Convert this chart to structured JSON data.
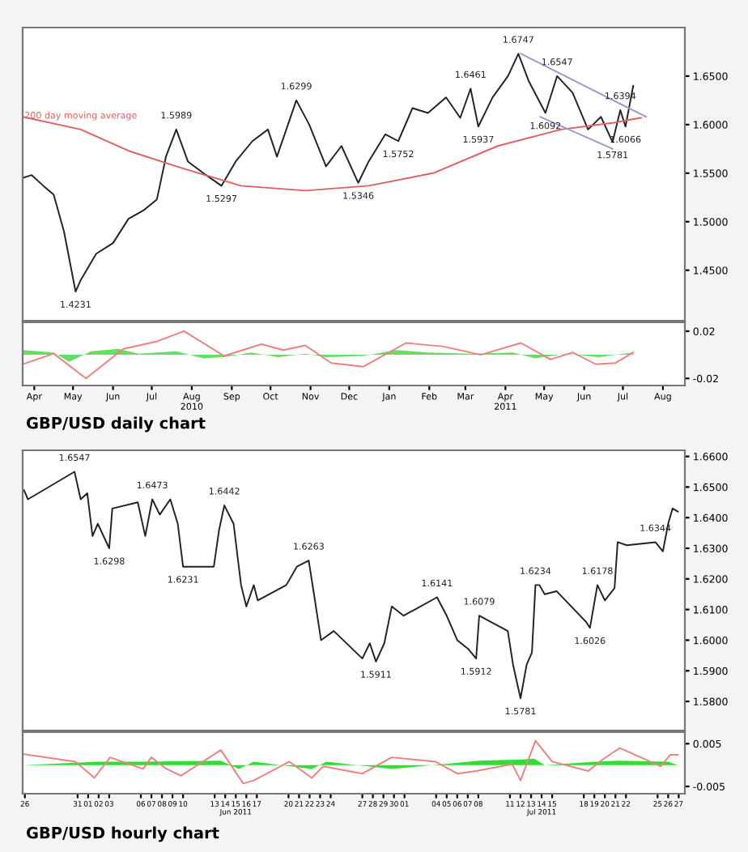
{
  "chart_data": [
    {
      "type": "line",
      "title": "GBP/USD daily chart",
      "tick_labels": "y",
      "xlim": [
        "2010-04-06",
        "2011-09-01"
      ],
      "ylim": [
        1.398,
        1.7
      ],
      "yticks": [
        {
          "value": 1.45,
          "label": "1.4500"
        },
        {
          "value": 1.5,
          "label": "1.5000"
        },
        {
          "value": 1.55,
          "label": "1.5500"
        },
        {
          "value": 1.6,
          "label": "1.6000"
        },
        {
          "value": 1.65,
          "label": "1.6500"
        }
      ],
      "series": [
        {
          "color": "#222222",
          "x": [
            "2010-04-06",
            "2010-04-13",
            "2010-04-22",
            "2010-04-30",
            "2010-05-08",
            "2010-05-17",
            "2010-05-21",
            "2010-06-02",
            "2010-06-15",
            "2010-06-27",
            "2010-07-09",
            "2010-07-19",
            "2010-07-26",
            "2010-08-03",
            "2010-08-12",
            "2010-08-24",
            "2010-09-07",
            "2010-09-18",
            "2010-10-01",
            "2010-10-13",
            "2010-10-20",
            "2010-11-04",
            "2010-11-14",
            "2010-11-27",
            "2010-12-09",
            "2010-12-22",
            "2010-12-30",
            "2011-01-12",
            "2011-01-22",
            "2011-02-02",
            "2011-02-14",
            "2011-02-28",
            "2011-03-11",
            "2011-03-19",
            "2011-03-25",
            "2011-04-05",
            "2011-04-17",
            "2011-04-25",
            "2011-05-03",
            "2011-05-16",
            "2011-05-25",
            "2011-06-06",
            "2011-06-18",
            "2011-06-28",
            "2011-07-07",
            "2011-07-13",
            "2011-07-17",
            "2011-07-23"
          ],
          "values": [
            1.545,
            1.548,
            1.537,
            1.528,
            1.49,
            1.428,
            1.44,
            1.467,
            1.478,
            1.503,
            1.512,
            1.523,
            1.567,
            1.595,
            1.562,
            1.55,
            1.537,
            1.562,
            1.583,
            1.595,
            1.567,
            1.625,
            1.6,
            1.557,
            1.578,
            1.54,
            1.562,
            1.59,
            1.583,
            1.617,
            1.612,
            1.628,
            1.607,
            1.637,
            1.598,
            1.628,
            1.65,
            1.673,
            1.645,
            1.612,
            1.65,
            1.633,
            1.595,
            1.608,
            1.582,
            1.615,
            1.598,
            1.64
          ]
        },
        {
          "color": "#e06060",
          "x": [
            "2010-04-06",
            "2010-05-21",
            "2010-06-27",
            "2010-08-03",
            "2010-09-22",
            "2010-11-11",
            "2010-12-30",
            "2011-02-18",
            "2011-04-09",
            "2011-05-28",
            "2011-07-08",
            "2011-07-29"
          ],
          "values": [
            1.608,
            1.595,
            1.573,
            1.557,
            1.537,
            1.532,
            1.537,
            1.55,
            1.578,
            1.595,
            1.602,
            1.607
          ]
        },
        {
          "color": "#9999cc",
          "x": [
            "2011-04-27",
            "2011-08-02"
          ],
          "values": [
            1.673,
            1.608
          ]
        },
        {
          "color": "#9999cc",
          "x": [
            "2011-05-12",
            "2011-07-07"
          ],
          "values": [
            1.608,
            1.575
          ]
        }
      ],
      "annotations": [
        {
          "text": "200 day moving average",
          "x": "2010-05-21",
          "y": 1.595
        },
        {
          "text": "1.4231",
          "x": "2010-05-17",
          "y": 1.428
        },
        {
          "text": "1.5989",
          "x": "2010-08-03",
          "y": 1.595
        },
        {
          "text": "1.5297",
          "x": "2010-09-07",
          "y": 1.537
        },
        {
          "text": "1.6299",
          "x": "2010-11-04",
          "y": 1.625
        },
        {
          "text": "1.5346",
          "x": "2010-12-22",
          "y": 1.54
        },
        {
          "text": "1.5752",
          "x": "2011-01-22",
          "y": 1.583
        },
        {
          "text": "1.6461",
          "x": "2011-03-19",
          "y": 1.637
        },
        {
          "text": "1.5937",
          "x": "2011-03-25",
          "y": 1.598
        },
        {
          "text": "1.6747",
          "x": "2011-04-25",
          "y": 1.673
        },
        {
          "text": "1.6092",
          "x": "2011-05-16",
          "y": 1.612
        },
        {
          "text": "1.6547",
          "x": "2011-05-25",
          "y": 1.65
        },
        {
          "text": "1.5781",
          "x": "2011-07-07",
          "y": 1.582
        },
        {
          "text": "1.6394",
          "x": "2011-07-13",
          "y": 1.615
        },
        {
          "text": "1.6066",
          "x": "2011-07-17",
          "y": 1.598
        }
      ]
    },
    {
      "type": "line",
      "xlim": [
        "2010-04-06",
        "2011-09-01"
      ],
      "ylim": [
        -0.026,
        0.0275
      ],
      "xticks": [
        {
          "value": "2010-04-15",
          "label": "Apr"
        },
        {
          "value": "2010-05-15",
          "label": "May"
        },
        {
          "value": "2010-06-15",
          "label": "Jun"
        },
        {
          "value": "2010-07-15",
          "label": "Jul"
        },
        {
          "value": "2010-08-15",
          "label": "Aug\n2010"
        },
        {
          "value": "2010-09-15",
          "label": "Sep"
        },
        {
          "value": "2010-10-15",
          "label": "Oct"
        },
        {
          "value": "2010-11-15",
          "label": "Nov"
        },
        {
          "value": "2010-12-15",
          "label": "Dec"
        },
        {
          "value": "2011-01-15",
          "label": "Jan"
        },
        {
          "value": "2011-02-15",
          "label": "Feb"
        },
        {
          "value": "2011-03-15",
          "label": "Mar"
        },
        {
          "value": "2011-04-15",
          "label": "Apr\n2011"
        },
        {
          "value": "2011-05-15",
          "label": "May"
        },
        {
          "value": "2011-06-15",
          "label": "Jun"
        },
        {
          "value": "2011-07-15",
          "label": "Jul"
        },
        {
          "value": "2011-08-15",
          "label": "Aug"
        }
      ],
      "yticks": [
        {
          "value": -0.02,
          "label": "-0.02"
        },
        {
          "value": 0.02,
          "label": "0.02"
        }
      ],
      "series": [
        {
          "type": "area",
          "color": "#66dd66",
          "x": [
            "2010-04-06",
            "2010-04-30",
            "2010-05-12",
            "2010-05-29",
            "2010-06-19",
            "2010-07-05",
            "2010-08-03",
            "2010-08-24",
            "2010-09-09",
            "2010-09-30",
            "2010-10-21",
            "2010-11-11",
            "2010-11-27",
            "2010-12-26",
            "2011-01-20",
            "2011-02-14",
            "2011-03-19",
            "2011-04-21",
            "2011-05-08",
            "2011-06-01",
            "2011-06-26",
            "2011-07-23"
          ],
          "values": [
            0.004,
            0.002,
            -0.006,
            0.003,
            0.005,
            0.001,
            0.003,
            -0.003,
            -0.002,
            0.002,
            -0.002,
            0.001,
            -0.002,
            -0.001,
            0.004,
            0.002,
            0.001,
            0.002,
            -0.003,
            0.001,
            -0.002,
            0.002
          ]
        },
        {
          "color": "#f08080",
          "x": [
            "2010-04-06",
            "2010-04-30",
            "2010-05-25",
            "2010-06-23",
            "2010-07-18",
            "2010-08-09",
            "2010-09-09",
            "2010-10-08",
            "2010-10-25",
            "2010-11-11",
            "2010-12-01",
            "2010-12-26",
            "2011-01-28",
            "2011-02-26",
            "2011-03-27",
            "2011-04-27",
            "2011-05-20",
            "2011-06-06",
            "2011-06-24",
            "2011-07-09",
            "2011-07-23"
          ],
          "values": [
            -0.008,
            0.001,
            -0.02,
            0.005,
            0.011,
            0.02,
            -0.001,
            0.009,
            0.004,
            0.008,
            -0.007,
            -0.01,
            0.01,
            0.007,
            0.0,
            0.01,
            -0.004,
            0.002,
            -0.008,
            -0.007,
            0.002
          ]
        }
      ]
    },
    {
      "type": "line",
      "title": "GBP/USD hourly chart",
      "tick_labels": "y",
      "xlim": [
        "2011-05-26T07:00",
        "2011-07-28T02:00"
      ],
      "ylim": [
        1.5705,
        1.662
      ],
      "yticks": [
        {
          "value": 1.58,
          "label": "1.5800"
        },
        {
          "value": 1.59,
          "label": "1.5900"
        },
        {
          "value": 1.6,
          "label": "1.6000"
        },
        {
          "value": 1.61,
          "label": "1.6100"
        },
        {
          "value": 1.62,
          "label": "1.6200"
        },
        {
          "value": 1.63,
          "label": "1.6300"
        },
        {
          "value": 1.64,
          "label": "1.6400"
        },
        {
          "value": 1.65,
          "label": "1.6500"
        },
        {
          "value": 1.66,
          "label": "1.6600"
        }
      ],
      "series": [
        {
          "color": "#222222",
          "x": [
            "2011-05-26T10:00",
            "2011-05-26T19:00",
            "2011-05-31T05:00",
            "2011-05-31T19:00",
            "2011-06-01T10:00",
            "2011-06-01T22:00",
            "2011-06-02T10:00",
            "2011-06-03T12:00",
            "2011-06-03T19:00",
            "2011-06-06T05:00",
            "2011-06-06T22:00",
            "2011-06-07T14:00",
            "2011-06-08T07:00",
            "2011-06-09T07:00",
            "2011-06-10T00:00",
            "2011-06-10T12:00",
            "2011-06-13T10:00",
            "2011-06-13T22:00",
            "2011-06-14T10:00",
            "2011-06-15T07:00",
            "2011-06-16T00:00",
            "2011-06-16T12:00",
            "2011-06-17T05:00",
            "2011-06-17T14:00",
            "2011-06-20T07:00",
            "2011-06-21T07:00",
            "2011-06-22T10:00",
            "2011-06-22T22:00",
            "2011-06-23T14:00",
            "2011-06-24T19:00",
            "2011-06-27T12:00",
            "2011-06-28T05:00",
            "2011-06-28T19:00",
            "2011-06-29T14:00",
            "2011-06-30T07:00",
            "2011-07-01T10:00",
            "2011-07-04T14:00",
            "2011-07-05T12:00",
            "2011-07-06T12:00",
            "2011-07-07T14:00",
            "2011-07-08T07:00",
            "2011-07-08T14:00",
            "2011-07-11T07:00",
            "2011-07-11T19:00",
            "2011-07-12T12:00",
            "2011-07-13T02:00",
            "2011-07-13T14:00",
            "2011-07-13T22:00",
            "2011-07-14T07:00",
            "2011-07-14T19:00",
            "2011-07-15T22:00",
            "2011-07-18T17:00",
            "2011-07-19T02:00",
            "2011-07-19T19:00",
            "2011-07-20T12:00",
            "2011-07-21T10:00",
            "2011-07-21T17:00",
            "2011-07-22T14:00",
            "2011-07-25T07:00",
            "2011-07-26T00:00",
            "2011-07-26T12:00",
            "2011-07-26T22:00",
            "2011-07-27T10:00"
          ],
          "values": [
            1.649,
            1.646,
            1.655,
            1.646,
            1.648,
            1.634,
            1.638,
            1.63,
            1.643,
            1.645,
            1.634,
            1.646,
            1.641,
            1.646,
            1.638,
            1.624,
            1.624,
            1.636,
            1.644,
            1.638,
            1.618,
            1.611,
            1.618,
            1.613,
            1.618,
            1.624,
            1.626,
            1.615,
            1.6,
            1.603,
            1.594,
            1.599,
            1.593,
            1.599,
            1.611,
            1.608,
            1.614,
            1.608,
            1.6,
            1.597,
            1.594,
            1.608,
            1.603,
            1.592,
            1.581,
            1.592,
            1.596,
            1.618,
            1.618,
            1.615,
            1.616,
            1.606,
            1.604,
            1.618,
            1.613,
            1.617,
            1.632,
            1.631,
            1.632,
            1.629,
            1.638,
            1.643,
            1.642
          ]
        }
      ],
      "annotations": [
        {
          "text": "1.6547",
          "x": "2011-05-31T05:00",
          "y": 1.655
        },
        {
          "text": "1.6298",
          "x": "2011-06-03T12:00",
          "y": 1.63
        },
        {
          "text": "1.6473",
          "x": "2011-06-07T14:00",
          "y": 1.646
        },
        {
          "text": "1.6231",
          "x": "2011-06-10T12:00",
          "y": 1.624
        },
        {
          "text": "1.6442",
          "x": "2011-06-14T10:00",
          "y": 1.644
        },
        {
          "text": "1.6263",
          "x": "2011-06-22T10:00",
          "y": 1.626
        },
        {
          "text": "1.5911",
          "x": "2011-06-28T19:00",
          "y": 1.593
        },
        {
          "text": "1.6141",
          "x": "2011-07-04T14:00",
          "y": 1.614
        },
        {
          "text": "1.5912",
          "x": "2011-07-08T07:00",
          "y": 1.594
        },
        {
          "text": "1.6079",
          "x": "2011-07-08T14:00",
          "y": 1.608
        },
        {
          "text": "1.5781",
          "x": "2011-07-12T12:00",
          "y": 1.581
        },
        {
          "text": "1.6234",
          "x": "2011-07-13T22:00",
          "y": 1.618
        },
        {
          "text": "1.6026",
          "x": "2011-07-19T02:00",
          "y": 1.604
        },
        {
          "text": "1.6178",
          "x": "2011-07-19T19:00",
          "y": 1.618
        },
        {
          "text": "1.6344",
          "x": "2011-07-25T07:00",
          "y": 1.632
        }
      ]
    },
    {
      "type": "line",
      "xlim": [
        "2011-05-26T07:00",
        "2011-07-28T02:00"
      ],
      "ylim": [
        -0.0067,
        0.0077
      ],
      "xticks": [
        {
          "value": "2011-05-26T12:00",
          "label": "26"
        },
        {
          "value": "2011-05-31T12:00",
          "label": "31"
        },
        {
          "value": "2011-06-01T12:00",
          "label": "01"
        },
        {
          "value": "2011-06-02T12:00",
          "label": "02"
        },
        {
          "value": "2011-06-03T12:00",
          "label": "03"
        },
        {
          "value": "2011-06-06T12:00",
          "label": "06"
        },
        {
          "value": "2011-06-07T12:00",
          "label": "07"
        },
        {
          "value": "2011-06-08T12:00",
          "label": "08"
        },
        {
          "value": "2011-06-09T12:00",
          "label": "09"
        },
        {
          "value": "2011-06-10T12:00",
          "label": "10"
        },
        {
          "value": "2011-06-13T12:00",
          "label": "13"
        },
        {
          "value": "2011-06-14T12:00",
          "label": "14"
        },
        {
          "value": "2011-06-15T12:00",
          "label": "15\nJun 2011"
        },
        {
          "value": "2011-06-16T12:00",
          "label": "16"
        },
        {
          "value": "2011-06-17T12:00",
          "label": "17"
        },
        {
          "value": "2011-06-20T12:00",
          "label": "20"
        },
        {
          "value": "2011-06-21T12:00",
          "label": "21"
        },
        {
          "value": "2011-06-22T12:00",
          "label": "22"
        },
        {
          "value": "2011-06-23T12:00",
          "label": "23"
        },
        {
          "value": "2011-06-24T12:00",
          "label": "24"
        },
        {
          "value": "2011-06-27T12:00",
          "label": "27"
        },
        {
          "value": "2011-06-28T12:00",
          "label": "28"
        },
        {
          "value": "2011-06-29T12:00",
          "label": "29"
        },
        {
          "value": "2011-06-30T12:00",
          "label": "30"
        },
        {
          "value": "2011-07-01T12:00",
          "label": "01"
        },
        {
          "value": "2011-07-04T12:00",
          "label": "04"
        },
        {
          "value": "2011-07-05T12:00",
          "label": "05"
        },
        {
          "value": "2011-07-06T12:00",
          "label": "06"
        },
        {
          "value": "2011-07-07T12:00",
          "label": "07"
        },
        {
          "value": "2011-07-08T12:00",
          "label": "08"
        },
        {
          "value": "2011-07-11T12:00",
          "label": "11"
        },
        {
          "value": "2011-07-12T12:00",
          "label": "12"
        },
        {
          "value": "2011-07-13T12:00",
          "label": "13"
        },
        {
          "value": "2011-07-14T12:00",
          "label": "14\nJul 2011"
        },
        {
          "value": "2011-07-15T12:00",
          "label": "15"
        },
        {
          "value": "2011-07-18T12:00",
          "label": "18"
        },
        {
          "value": "2011-07-19T12:00",
          "label": "19"
        },
        {
          "value": "2011-07-20T12:00",
          "label": "20"
        },
        {
          "value": "2011-07-21T12:00",
          "label": "21"
        },
        {
          "value": "2011-07-22T12:00",
          "label": "22"
        },
        {
          "value": "2011-07-25T12:00",
          "label": "25"
        },
        {
          "value": "2011-07-26T12:00",
          "label": "26"
        },
        {
          "value": "2011-07-27T12:00",
          "label": "27"
        }
      ],
      "yticks": [
        {
          "value": -0.005,
          "label": "-0.005"
        },
        {
          "value": 0.005,
          "label": "0.005"
        }
      ],
      "series": [
        {
          "type": "area",
          "color": "#33dd33",
          "x": [
            "2011-05-26T07:00",
            "2011-06-02T10:00",
            "2011-06-06T19:00",
            "2011-06-14T02:00",
            "2011-06-15T19:00",
            "2011-06-17T05:00",
            "2011-06-22T17:00",
            "2011-06-24T02:00",
            "2011-06-30T07:00",
            "2011-07-08T14:00",
            "2011-07-12T17:00",
            "2011-07-13T19:00",
            "2011-07-14T19:00",
            "2011-07-19T14:00",
            "2011-07-21T17:00",
            "2011-07-26T12:00",
            "2011-07-27T10:00"
          ],
          "values": [
            0.0,
            0.0008,
            0.0008,
            0.001,
            -0.0009,
            0.0008,
            -0.0009,
            0.0008,
            -0.0009,
            0.001,
            0.0013,
            0.0015,
            0.0,
            0.0008,
            0.001,
            0.0008,
            0.0
          ]
        },
        {
          "color": "#f08080",
          "x": [
            "2011-05-26T07:00",
            "2011-05-31T07:00",
            "2011-06-01T00:00",
            "2011-06-02T02:00",
            "2011-06-03T14:00",
            "2011-06-06T17:00",
            "2011-06-07T12:00",
            "2011-06-08T19:00",
            "2011-06-10T07:00",
            "2011-06-14T02:00",
            "2011-06-16T05:00",
            "2011-06-17T05:00",
            "2011-06-20T14:00",
            "2011-06-22T17:00",
            "2011-06-23T19:00",
            "2011-06-27T12:00",
            "2011-06-30T07:00",
            "2011-07-04T10:00",
            "2011-07-06T12:00",
            "2011-07-08T07:00",
            "2011-07-11T17:00",
            "2011-07-12T12:00",
            "2011-07-13T22:00",
            "2011-07-15T12:00",
            "2011-07-18T22:00",
            "2011-07-20T07:00",
            "2011-07-21T22:00",
            "2011-07-25T19:00",
            "2011-07-26T17:00",
            "2011-07-27T10:00"
          ],
          "values": [
            0.0026,
            0.0008,
            -0.0007,
            -0.003,
            0.0018,
            -0.0009,
            0.0018,
            -0.0007,
            -0.0025,
            0.0035,
            -0.0043,
            -0.0036,
            0.0008,
            -0.003,
            -0.0003,
            -0.002,
            0.0018,
            0.0008,
            -0.002,
            -0.0014,
            0.0002,
            -0.0036,
            0.0057,
            0.0008,
            -0.0014,
            0.0013,
            0.004,
            -0.0003,
            0.0024,
            0.0024
          ]
        }
      ]
    }
  ]
}
